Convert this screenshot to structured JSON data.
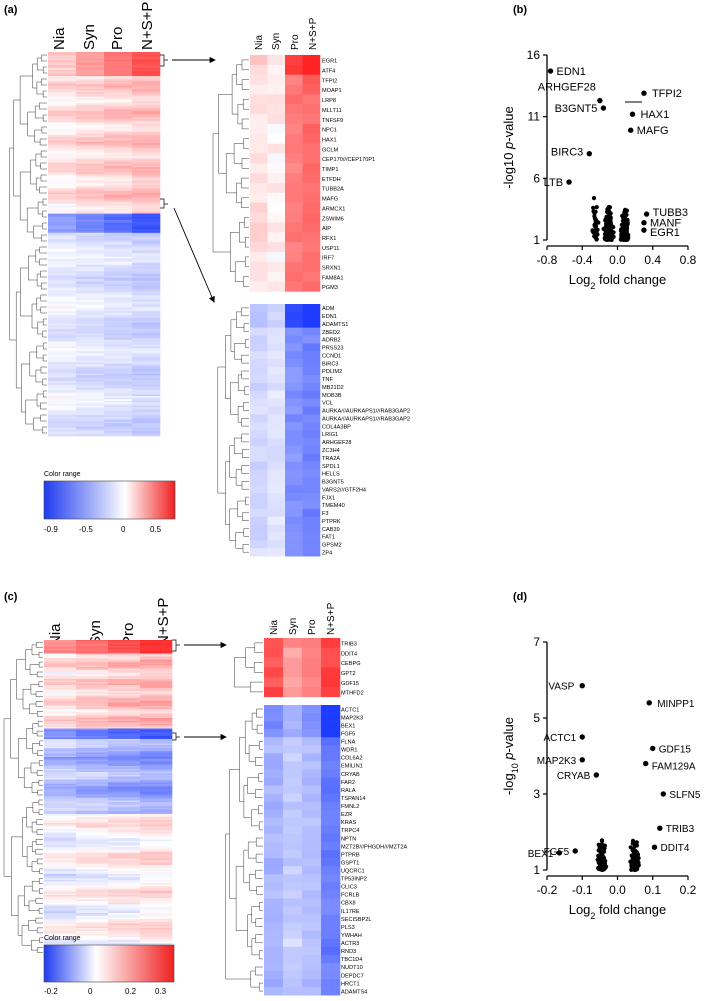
{
  "panel_labels": [
    "(a)",
    "(b)",
    "(c)",
    "(d)"
  ],
  "panel_a": {
    "columns": [
      "Nia",
      "Syn",
      "Pro",
      "N+S+P"
    ],
    "color_range_title": "Color range",
    "color_range_ticks": [
      "-0.9",
      "-0.5",
      "0",
      "0.5"
    ],
    "up_genes": [
      "EGR1",
      "ATF4",
      "TFPI2",
      "MOAP1",
      "LRP8",
      "MLLT11",
      "TNFSF9",
      "NPC1",
      "HAX1",
      "GCLM",
      "CEP170///CEP170P1",
      "TIMP1",
      "ETFDH",
      "TUBB2A",
      "MAFG",
      "ARMCX1",
      "ZSWIM6",
      "AIP",
      "RFX1",
      "USP11",
      "IRF7",
      "SRXN1",
      "FAM8A1",
      "PGM3"
    ],
    "down_genes": [
      "ADM",
      "EDN1",
      "ADAMTS1",
      "ZBED2",
      "ADRB2",
      "PRSS23",
      "CCND1",
      "BIRC3",
      "PDLIM2",
      "TNF",
      "MB21D2",
      "MOB3B",
      "VCL",
      "AURKA///AURKAPS1///RAB3GAP2",
      "AURKA///AURKAPS1///RAB3GAP2",
      "COL4A3BP",
      "LRIG1",
      "ARHGEF28",
      "ZC3H4",
      "TRA2A",
      "SPDL1",
      "HELLS",
      "B3GNT5",
      "VARS2///GTF2H4",
      "FJX1",
      "TMEM40",
      "F3",
      "PTPRK",
      "CAB39",
      "FAT1",
      "GPSM2",
      "ZP4"
    ]
  },
  "panel_c": {
    "columns": [
      "Nia",
      "Syn",
      "Pro",
      "N+S+P"
    ],
    "color_range_title": "Color range",
    "color_range_ticks": [
      "-0.2",
      "0",
      "0.2",
      "0.3"
    ],
    "up_genes": [
      "TRIB3",
      "DDIT4",
      "CEBPG",
      "GPT2",
      "GDF15",
      "MTHFD2"
    ],
    "down_genes": [
      "ACTC1",
      "MAP2K3",
      "BEX1",
      "FGF5",
      "FLNA",
      "WDR1",
      "COL6A2",
      "EMILIN1",
      "CRYAB",
      "FAR2",
      "RALA",
      "TSPAN14",
      "FMNL2",
      "EZR",
      "KRAS",
      "TRPC4",
      "NPTN",
      "MZT2B///PHGDH///MZT2A",
      "PTPRB",
      "GSPT1",
      "UQCRC1",
      "TP53INP2",
      "CLIC3",
      "FCRLB",
      "CBX8",
      "IL17RE",
      "SECISBP2L",
      "PLS3",
      "YWHAH",
      "ACTR3",
      "RND3",
      "TBC1D4",
      "NUDT10",
      "DEPDC7",
      "HRCT1",
      "ADAMTS4"
    ]
  },
  "chart_data": [
    {
      "type": "scatter",
      "panel": "(b)",
      "xlabel": "Log2 fold change",
      "ylabel": "-log10 p-value",
      "xlim": [
        -0.8,
        0.8
      ],
      "ylim": [
        1,
        16
      ],
      "x_ticks": [
        "-0.8",
        "-0.4",
        "0.0",
        "0.4",
        "0.8"
      ],
      "y_ticks": [
        "1",
        "6",
        "11",
        "16"
      ],
      "labeled_points": [
        {
          "label": "EDN1",
          "x": -0.76,
          "y": 14.7
        },
        {
          "label": "ARHGEF28",
          "x": -0.2,
          "y": 12.3
        },
        {
          "label": "B3GNT5",
          "x": -0.16,
          "y": 11.7
        },
        {
          "label": "TFPI2",
          "x": 0.3,
          "y": 12.9
        },
        {
          "label": "HAX1",
          "x": 0.17,
          "y": 11.2
        },
        {
          "label": "MAFG",
          "x": 0.15,
          "y": 9.9
        },
        {
          "label": "BIRC3",
          "x": -0.32,
          "y": 8.0
        },
        {
          "label": "LTB",
          "x": -0.55,
          "y": 5.7
        },
        {
          "label": "TUBB3",
          "x": 0.33,
          "y": 3.1
        },
        {
          "label": "MANF",
          "x": 0.3,
          "y": 2.4
        },
        {
          "label": "EGR1",
          "x": 0.3,
          "y": 1.8
        }
      ]
    },
    {
      "type": "scatter",
      "panel": "(d)",
      "xlabel": "Log2 fold change",
      "ylabel": "-log10 p-value",
      "xlim": [
        -0.2,
        0.2
      ],
      "ylim": [
        1,
        7
      ],
      "x_ticks": [
        "-0.2",
        "-0.1",
        "0.0",
        "0.1",
        "0.2"
      ],
      "y_ticks": [
        "1",
        "3",
        "5",
        "7"
      ],
      "labeled_points": [
        {
          "label": "VASP",
          "x": -0.1,
          "y": 5.85
        },
        {
          "label": "MINPP1",
          "x": 0.09,
          "y": 5.4
        },
        {
          "label": "ACTC1",
          "x": -0.1,
          "y": 4.5
        },
        {
          "label": "GDF15",
          "x": 0.1,
          "y": 4.2
        },
        {
          "label": "MAP2K3",
          "x": -0.1,
          "y": 3.9
        },
        {
          "label": "FAM129A",
          "x": 0.08,
          "y": 3.8
        },
        {
          "label": "CRYAB",
          "x": -0.06,
          "y": 3.5
        },
        {
          "label": "SLFN5",
          "x": 0.13,
          "y": 3.0
        },
        {
          "label": "TRIB3",
          "x": 0.12,
          "y": 2.1
        },
        {
          "label": "DDIT4",
          "x": 0.105,
          "y": 1.6
        },
        {
          "label": "BEX1",
          "x": -0.165,
          "y": 1.45
        },
        {
          "label": "FGF5",
          "x": -0.12,
          "y": 1.5
        }
      ]
    }
  ]
}
